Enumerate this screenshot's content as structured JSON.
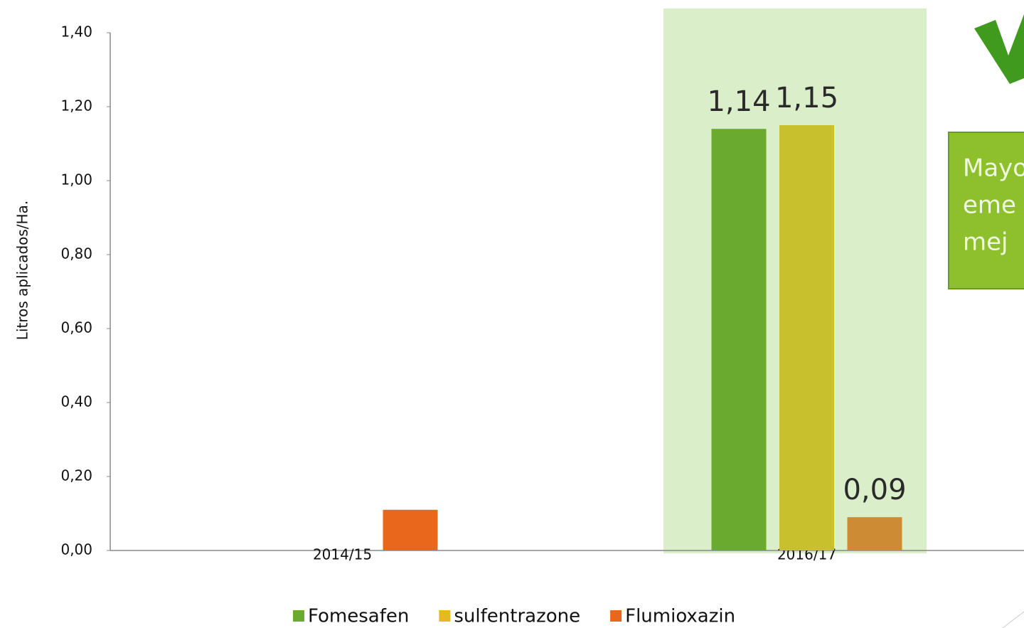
{
  "chart_data": {
    "type": "bar",
    "y_label": "Litros aplicados/Ha.",
    "categories": [
      "2014/15",
      "2016/17"
    ],
    "series": [
      {
        "name": "Fomesafen",
        "color": "#6aaa2e",
        "values": [
          null,
          1.14
        ],
        "value_labels": [
          null,
          "1,14"
        ]
      },
      {
        "name": "sulfentrazone",
        "color": "#c9c02e",
        "legend_color": "#e8b820",
        "values": [
          null,
          1.15
        ],
        "value_labels": [
          null,
          "1,15"
        ]
      },
      {
        "name": "Flumioxazin",
        "color": "#e8671c",
        "colors": [
          "#e8671c",
          "#cd8b33"
        ],
        "values": [
          0.11,
          0.09
        ],
        "value_labels": [
          null,
          "0,09"
        ]
      }
    ],
    "ylim": [
      0,
      1.4
    ],
    "yticks": [
      {
        "value": 0,
        "label": "0,00"
      },
      {
        "value": 0.2,
        "label": "0,20"
      },
      {
        "value": 0.4,
        "label": "0,40"
      },
      {
        "value": 0.6,
        "label": "0,60"
      },
      {
        "value": 0.8,
        "label": "0,80"
      },
      {
        "value": 1.0,
        "label": "1,00"
      },
      {
        "value": 1.2,
        "label": "1,20"
      },
      {
        "value": 1.4,
        "label": "1,40"
      }
    ],
    "annotation": [
      "Mayo",
      "eme",
      "mej"
    ]
  }
}
